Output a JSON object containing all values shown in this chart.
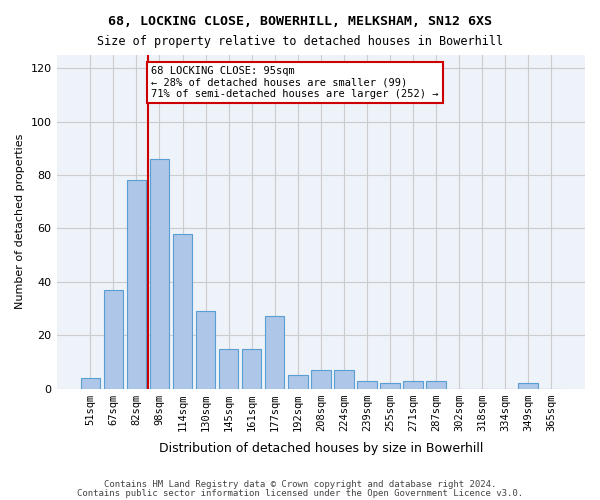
{
  "title1": "68, LOCKING CLOSE, BOWERHILL, MELKSHAM, SN12 6XS",
  "title2": "Size of property relative to detached houses in Bowerhill",
  "xlabel": "Distribution of detached houses by size in Bowerhill",
  "ylabel": "Number of detached properties",
  "categories": [
    "51sqm",
    "67sqm",
    "82sqm",
    "98sqm",
    "114sqm",
    "130sqm",
    "145sqm",
    "161sqm",
    "177sqm",
    "192sqm",
    "208sqm",
    "224sqm",
    "239sqm",
    "255sqm",
    "271sqm",
    "287sqm",
    "302sqm",
    "318sqm",
    "334sqm",
    "349sqm",
    "365sqm"
  ],
  "values": [
    4,
    37,
    78,
    86,
    58,
    29,
    15,
    15,
    27,
    5,
    7,
    7,
    3,
    2,
    3,
    3,
    0,
    0,
    0,
    2,
    0
  ],
  "bar_color": "#aec6e8",
  "bar_edge_color": "#5a9fd4",
  "annotation_line1": "68 LOCKING CLOSE: 95sqm",
  "annotation_line2": "← 28% of detached houses are smaller (99)",
  "annotation_line3": "71% of semi-detached houses are larger (252) →",
  "annotation_box_color": "#ffffff",
  "annotation_box_edge_color": "#cc0000",
  "marker_line_color": "#cc0000",
  "vline_x": 2.5,
  "ylim": [
    0,
    125
  ],
  "yticks": [
    0,
    20,
    40,
    60,
    80,
    100,
    120
  ],
  "grid_color": "#cccccc",
  "background_color": "#eef2f9",
  "footer_line1": "Contains HM Land Registry data © Crown copyright and database right 2024.",
  "footer_line2": "Contains public sector information licensed under the Open Government Licence v3.0."
}
